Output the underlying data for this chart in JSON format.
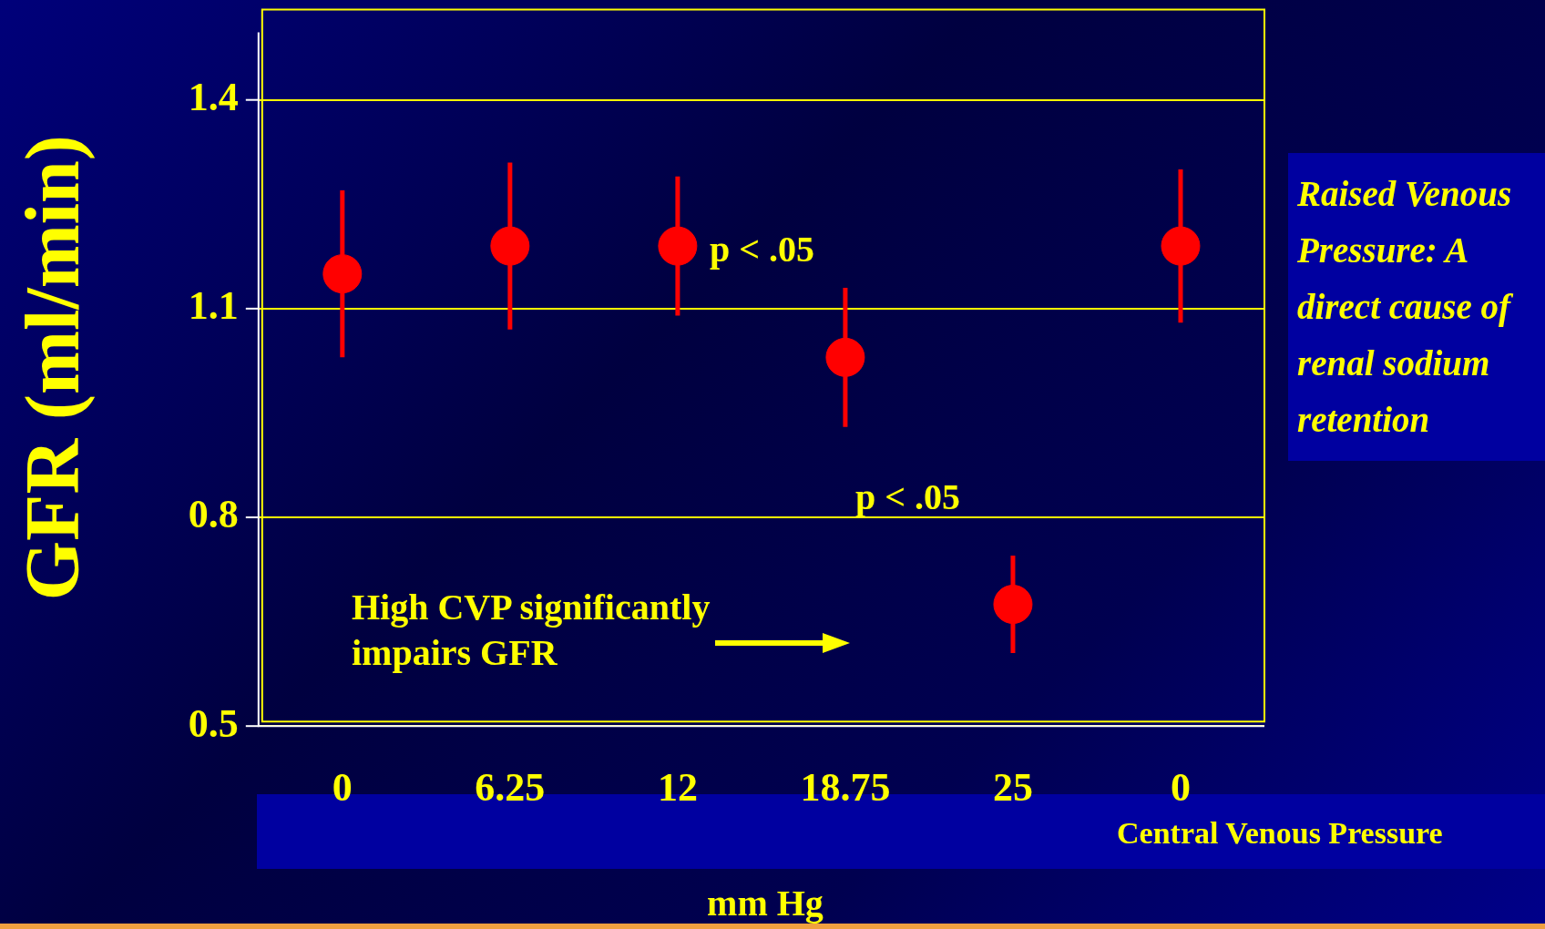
{
  "chart_data": {
    "type": "scatter",
    "ylabel": "GFR (ml/min)",
    "xlabel": "mm Hg",
    "categories": [
      "0",
      "6.25",
      "12",
      "18.75",
      "25",
      "0"
    ],
    "series": [
      {
        "color": "#ff0000",
        "values": [
          1.15,
          1.19,
          1.19,
          1.03,
          0.675,
          1.19
        ],
        "errors": [
          0.12,
          0.12,
          0.1,
          0.1,
          0.07,
          0.11
        ]
      }
    ],
    "ylim": [
      0.5,
      1.53
    ],
    "yticks": [
      0.5,
      0.8,
      1.1,
      1.4
    ],
    "grid": "y",
    "legend": false,
    "marker": "circle",
    "annotations": [
      "High CVP significantly impairs GFR",
      "Raised Venous Pressure: A direct cause of renal sodium retention",
      "Central Venous Pressure",
      "p < .05",
      "p < .05"
    ]
  }
}
